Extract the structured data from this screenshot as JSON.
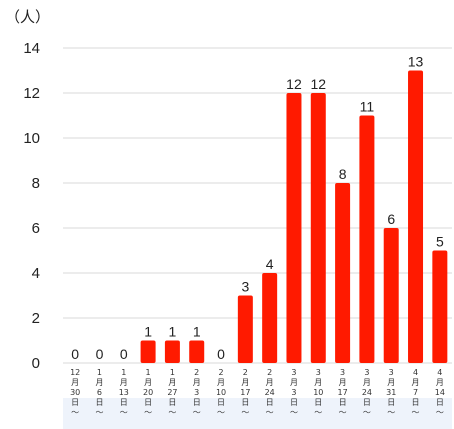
{
  "chart_data": {
    "type": "bar",
    "unit_label": "（人）",
    "categories": [
      [
        "12",
        "月",
        "30",
        "日",
        "〜"
      ],
      [
        "1",
        "月",
        "6",
        "日",
        "〜"
      ],
      [
        "1",
        "月",
        "13",
        "日",
        "〜"
      ],
      [
        "1",
        "月",
        "20",
        "日",
        "〜"
      ],
      [
        "1",
        "月",
        "27",
        "日",
        "〜"
      ],
      [
        "2",
        "月",
        "3",
        "日",
        "〜"
      ],
      [
        "2",
        "月",
        "10",
        "日",
        "〜"
      ],
      [
        "2",
        "月",
        "17",
        "日",
        "〜"
      ],
      [
        "2",
        "月",
        "24",
        "日",
        "〜"
      ],
      [
        "3",
        "月",
        "3",
        "日",
        "〜"
      ],
      [
        "3",
        "月",
        "10",
        "日",
        "〜"
      ],
      [
        "3",
        "月",
        "17",
        "日",
        "〜"
      ],
      [
        "3",
        "月",
        "24",
        "日",
        "〜"
      ],
      [
        "3",
        "月",
        "31",
        "日",
        "〜"
      ],
      [
        "4",
        "月",
        "7",
        "日",
        "〜"
      ],
      [
        "4",
        "月",
        "14",
        "日",
        "〜"
      ]
    ],
    "values": [
      0,
      0,
      0,
      1,
      1,
      1,
      0,
      3,
      4,
      12,
      12,
      8,
      11,
      6,
      13,
      5
    ],
    "yticks": [
      0,
      2,
      4,
      6,
      8,
      10,
      12,
      14
    ],
    "ylim": [
      0,
      14
    ],
    "grid": true,
    "bar_color": "#ff1a00",
    "grid_color": "#d9d9d9",
    "shaded_region_color": "#eef3fb"
  }
}
